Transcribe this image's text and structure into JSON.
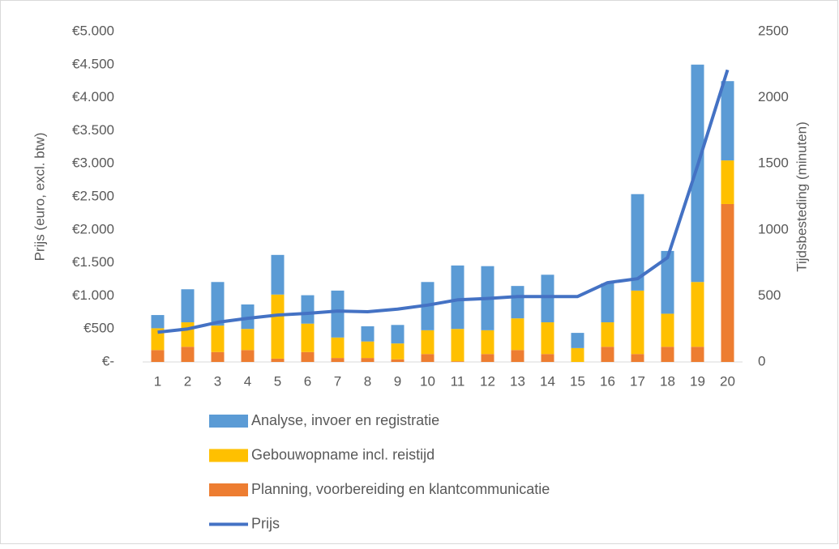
{
  "chart_data": {
    "type": "bar-line",
    "y_label": "Prijs (euro, excl. btw)",
    "y2_label": "Tijdsbesteding (minuten)",
    "categories": [
      "1",
      "2",
      "3",
      "4",
      "5",
      "6",
      "7",
      "8",
      "9",
      "10",
      "11",
      "12",
      "13",
      "14",
      "15",
      "16",
      "17",
      "18",
      "19",
      "20"
    ],
    "series": [
      {
        "name": "Planning, voorbereiding en klantcommunicatie",
        "type": "bar",
        "axis": "y2",
        "color": "#ed7d31",
        "values": [
          90,
          115,
          75,
          90,
          25,
          75,
          30,
          30,
          20,
          60,
          5,
          60,
          90,
          60,
          0,
          115,
          60,
          115,
          115,
          1195
        ]
      },
      {
        "name": "Gebouwopname incl. reistijd",
        "type": "bar",
        "axis": "y2",
        "color": "#ffc000",
        "values": [
          165,
          185,
          200,
          160,
          485,
          215,
          155,
          125,
          120,
          180,
          245,
          180,
          240,
          240,
          105,
          185,
          480,
          250,
          490,
          330
        ]
      },
      {
        "name": "Analyse, invoer en registratie",
        "type": "bar",
        "axis": "y2",
        "color": "#5b9bd5",
        "values": [
          100,
          250,
          330,
          185,
          300,
          215,
          355,
          115,
          140,
          365,
          480,
          485,
          245,
          360,
          115,
          295,
          730,
          475,
          1645,
          600
        ]
      },
      {
        "name": "Prijs",
        "type": "line",
        "axis": "y",
        "color": "#4472c4",
        "values": [
          450,
          500,
          600,
          660,
          710,
          735,
          770,
          760,
          800,
          860,
          940,
          960,
          990,
          990,
          990,
          1200,
          1260,
          1580,
          2970,
          4420
        ]
      }
    ],
    "ylim": [
      0,
      5000
    ],
    "yticks": [
      {
        "value": 0,
        "label": "€-"
      },
      {
        "value": 500,
        "label": "€500"
      },
      {
        "value": 1000,
        "label": "€1.000"
      },
      {
        "value": 1500,
        "label": "€1.500"
      },
      {
        "value": 2000,
        "label": "€2.000"
      },
      {
        "value": 2500,
        "label": "€2.500"
      },
      {
        "value": 3000,
        "label": "€3.000"
      },
      {
        "value": 3500,
        "label": "€3.500"
      },
      {
        "value": 4000,
        "label": "€4.000"
      },
      {
        "value": 4500,
        "label": "€4.500"
      },
      {
        "value": 5000,
        "label": "€5.000"
      }
    ],
    "y2lim": [
      0,
      2500
    ],
    "y2ticks": [
      0,
      500,
      1000,
      1500,
      2000,
      2500
    ],
    "grid": false,
    "legend": "bottom"
  }
}
